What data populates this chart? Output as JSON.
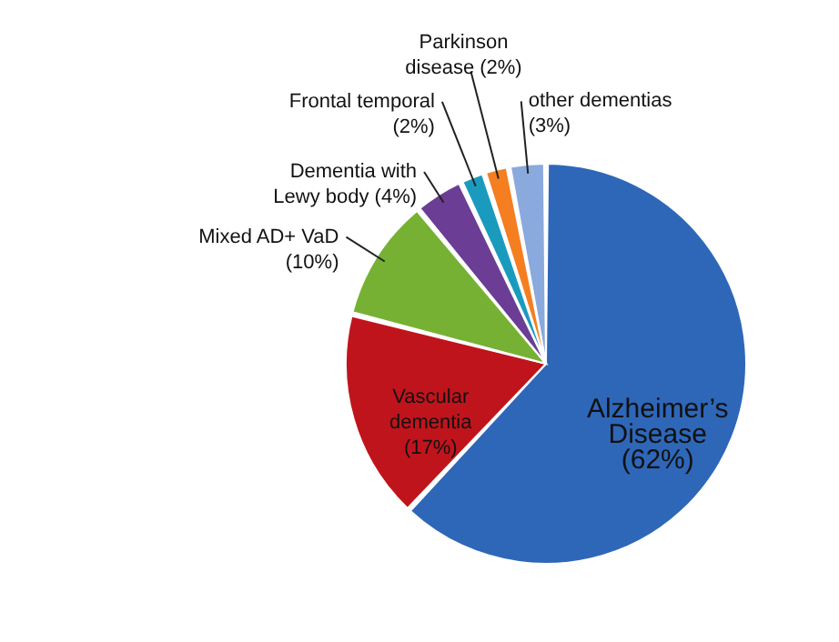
{
  "chart_data": {
    "type": "pie",
    "categories": [
      "Alzheimer’s Disease",
      "Vascular dementia",
      "Mixed AD+ VaD",
      "Dementia with Lewy body",
      "Frontal temporal",
      "Parkinson disease",
      "other dementias"
    ],
    "values": [
      62,
      17,
      10,
      4,
      2,
      2,
      3
    ],
    "value_labels": [
      "(62%)",
      "(17%)",
      "(10%)",
      "(4%)",
      "(2%)",
      "(2%)",
      "(3%)"
    ],
    "colors": [
      "#2e67b8",
      "#c0141c",
      "#76b134",
      "#6b3d94",
      "#1a9bbd",
      "#f57e20",
      "#8aa9dc"
    ],
    "legend": false
  }
}
